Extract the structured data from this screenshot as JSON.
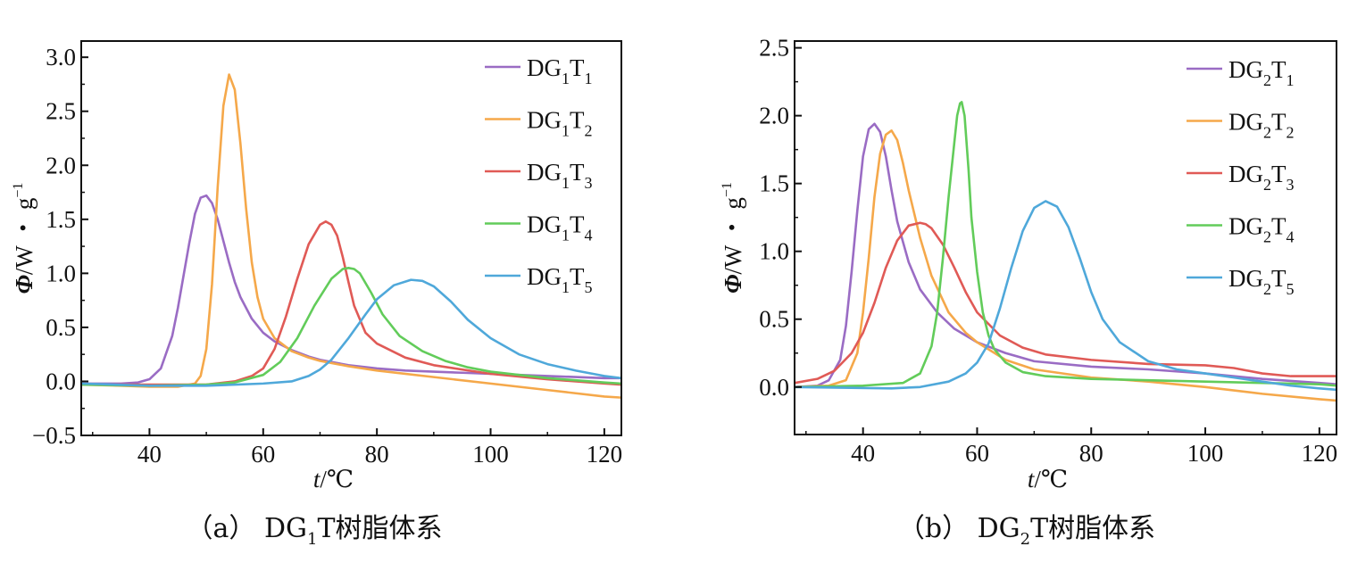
{
  "chart_data": [
    {
      "type": "line",
      "caption": "(a)  DG1T树脂体系",
      "caption_parts": {
        "prefix": "（a）",
        "name": "DG",
        "sub": "1",
        "suffix": "T树脂体系"
      },
      "xlabel": "t/℃",
      "ylabel": "Φ/W・g−1",
      "xlim": [
        28,
        123
      ],
      "ylim": [
        -0.5,
        3.15
      ],
      "xticks": [
        40,
        60,
        80,
        100,
        120
      ],
      "xtick_labels": [
        "40",
        "60",
        "80",
        "100",
        "120"
      ],
      "yticks": [
        -0.5,
        0.0,
        0.5,
        1.0,
        1.5,
        2.0,
        2.5,
        3.0
      ],
      "ytick_labels": [
        "−0.5",
        "0.0",
        "0.5",
        "1.0",
        "1.5",
        "2.0",
        "2.5",
        "3.0"
      ],
      "legend_position": "top-right",
      "grid": false,
      "series": [
        {
          "name": "DG1T1",
          "label_base": "DG",
          "sub1": "1",
          "mid": "T",
          "sub2": "1",
          "color": "#9a6cc4",
          "x": [
            28,
            32,
            35,
            38,
            40,
            42,
            44,
            45,
            46,
            47,
            48,
            49,
            50,
            51,
            52,
            53,
            54,
            55,
            56,
            58,
            60,
            62,
            65,
            68,
            70,
            75,
            80,
            85,
            90,
            95,
            100,
            110,
            120,
            123
          ],
          "y": [
            -0.02,
            -0.02,
            -0.02,
            -0.01,
            0.02,
            0.12,
            0.42,
            0.68,
            0.98,
            1.28,
            1.55,
            1.7,
            1.72,
            1.65,
            1.5,
            1.3,
            1.1,
            0.92,
            0.78,
            0.58,
            0.45,
            0.37,
            0.29,
            0.23,
            0.2,
            0.15,
            0.12,
            0.1,
            0.09,
            0.08,
            0.07,
            0.05,
            0.03,
            0.03
          ]
        },
        {
          "name": "DG1T2",
          "label_base": "DG",
          "sub1": "1",
          "mid": "T",
          "sub2": "2",
          "color": "#f5a84a",
          "x": [
            28,
            35,
            40,
            45,
            48,
            49,
            50,
            51,
            52,
            53,
            54,
            55,
            56,
            57,
            58,
            59,
            60,
            62,
            65,
            68,
            70,
            75,
            80,
            90,
            100,
            110,
            120,
            123
          ],
          "y": [
            -0.03,
            -0.04,
            -0.05,
            -0.05,
            -0.02,
            0.05,
            0.3,
            0.9,
            1.8,
            2.55,
            2.84,
            2.7,
            2.2,
            1.6,
            1.1,
            0.78,
            0.58,
            0.4,
            0.28,
            0.22,
            0.19,
            0.14,
            0.1,
            0.04,
            -0.02,
            -0.08,
            -0.14,
            -0.15
          ]
        },
        {
          "name": "DG1T3",
          "label_base": "DG",
          "sub1": "1",
          "mid": "T",
          "sub2": "3",
          "color": "#e05a56",
          "x": [
            28,
            40,
            50,
            55,
            58,
            60,
            62,
            64,
            66,
            68,
            70,
            71,
            72,
            73,
            74,
            75,
            76,
            78,
            80,
            85,
            90,
            100,
            110,
            120,
            123
          ],
          "y": [
            -0.03,
            -0.03,
            -0.03,
            0.0,
            0.05,
            0.12,
            0.3,
            0.6,
            0.95,
            1.27,
            1.45,
            1.48,
            1.45,
            1.35,
            1.15,
            0.92,
            0.7,
            0.45,
            0.35,
            0.22,
            0.15,
            0.07,
            0.02,
            -0.02,
            -0.03
          ]
        },
        {
          "name": "DG1T4",
          "label_base": "DG",
          "sub1": "1",
          "mid": "T",
          "sub2": "4",
          "color": "#62cc5a",
          "x": [
            28,
            40,
            50,
            55,
            60,
            63,
            66,
            69,
            72,
            74,
            75,
            76,
            77,
            79,
            81,
            84,
            88,
            92,
            96,
            100,
            110,
            120,
            123
          ],
          "y": [
            -0.03,
            -0.04,
            -0.03,
            -0.01,
            0.06,
            0.18,
            0.4,
            0.7,
            0.95,
            1.04,
            1.05,
            1.04,
            1.0,
            0.82,
            0.62,
            0.42,
            0.28,
            0.19,
            0.13,
            0.09,
            0.03,
            -0.01,
            -0.02
          ]
        },
        {
          "name": "DG1T5",
          "label_base": "DG",
          "sub1": "1",
          "mid": "T",
          "sub2": "5",
          "color": "#4fa8da",
          "x": [
            28,
            40,
            50,
            60,
            65,
            68,
            70,
            72,
            75,
            78,
            80,
            83,
            86,
            88,
            90,
            93,
            96,
            100,
            105,
            110,
            115,
            120,
            123
          ],
          "y": [
            -0.02,
            -0.04,
            -0.04,
            -0.02,
            0.0,
            0.05,
            0.11,
            0.2,
            0.4,
            0.62,
            0.76,
            0.89,
            0.94,
            0.93,
            0.88,
            0.74,
            0.57,
            0.4,
            0.25,
            0.16,
            0.1,
            0.05,
            0.03
          ]
        }
      ]
    },
    {
      "type": "line",
      "caption": "(b)  DG2T树脂体系",
      "caption_parts": {
        "prefix": "（b）",
        "name": "DG",
        "sub": "2",
        "suffix": "T树脂体系"
      },
      "xlabel": "t/℃",
      "ylabel": "Φ/W・g−1",
      "xlim": [
        28,
        123
      ],
      "ylim": [
        -0.35,
        2.55
      ],
      "xticks": [
        40,
        60,
        80,
        100,
        120
      ],
      "xtick_labels": [
        "40",
        "60",
        "80",
        "100",
        "120"
      ],
      "yticks": [
        0.0,
        0.5,
        1.0,
        1.5,
        2.0,
        2.5
      ],
      "ytick_labels": [
        "0.0",
        "0.5",
        "1.0",
        "1.5",
        "2.0",
        "2.5"
      ],
      "legend_position": "top-right",
      "grid": false,
      "series": [
        {
          "name": "DG2T1",
          "label_base": "DG",
          "sub1": "2",
          "mid": "T",
          "sub2": "1",
          "color": "#9a6cc4",
          "x": [
            28,
            32,
            34,
            36,
            37,
            38,
            39,
            40,
            41,
            42,
            43,
            44,
            45,
            46,
            48,
            50,
            53,
            56,
            60,
            65,
            70,
            80,
            90,
            100,
            110,
            120,
            123
          ],
          "y": [
            0.0,
            0.01,
            0.05,
            0.2,
            0.45,
            0.85,
            1.3,
            1.7,
            1.9,
            1.94,
            1.88,
            1.7,
            1.45,
            1.22,
            0.92,
            0.72,
            0.55,
            0.43,
            0.33,
            0.25,
            0.19,
            0.15,
            0.13,
            0.1,
            0.06,
            0.03,
            0.02
          ]
        },
        {
          "name": "DG2T2",
          "label_base": "DG",
          "sub1": "2",
          "mid": "T",
          "sub2": "2",
          "color": "#f5a84a",
          "x": [
            28,
            34,
            37,
            39,
            40,
            41,
            42,
            43,
            44,
            45,
            46,
            47,
            48,
            50,
            52,
            55,
            58,
            60,
            65,
            70,
            80,
            90,
            100,
            110,
            120,
            123
          ],
          "y": [
            0.0,
            0.01,
            0.05,
            0.25,
            0.55,
            0.95,
            1.4,
            1.72,
            1.86,
            1.89,
            1.82,
            1.65,
            1.45,
            1.1,
            0.82,
            0.55,
            0.4,
            0.33,
            0.2,
            0.13,
            0.07,
            0.04,
            0.0,
            -0.05,
            -0.09,
            -0.1
          ]
        },
        {
          "name": "DG2T3",
          "label_base": "DG",
          "sub1": "2",
          "mid": "T",
          "sub2": "3",
          "color": "#e05a56",
          "x": [
            28,
            32,
            35,
            38,
            40,
            42,
            44,
            46,
            48,
            50,
            51,
            52,
            54,
            56,
            58,
            60,
            64,
            68,
            72,
            80,
            90,
            100,
            105,
            110,
            115,
            120,
            123
          ],
          "y": [
            0.03,
            0.06,
            0.12,
            0.25,
            0.4,
            0.62,
            0.88,
            1.08,
            1.19,
            1.21,
            1.2,
            1.17,
            1.05,
            0.88,
            0.7,
            0.55,
            0.38,
            0.29,
            0.24,
            0.2,
            0.17,
            0.16,
            0.14,
            0.1,
            0.08,
            0.08,
            0.08
          ]
        },
        {
          "name": "DG2T4",
          "label_base": "DG",
          "sub1": "2",
          "mid": "T",
          "sub2": "4",
          "color": "#62cc5a",
          "x": [
            28,
            40,
            47,
            50,
            52,
            53,
            54,
            55,
            56,
            56.5,
            57,
            57.3,
            57.8,
            58.5,
            59,
            60,
            61,
            62,
            63,
            65,
            68,
            72,
            80,
            90,
            100,
            110,
            120,
            123
          ],
          "y": [
            0.0,
            0.01,
            0.03,
            0.1,
            0.3,
            0.55,
            0.95,
            1.4,
            1.8,
            2.0,
            2.09,
            2.1,
            2.0,
            1.6,
            1.25,
            0.85,
            0.55,
            0.38,
            0.28,
            0.18,
            0.11,
            0.08,
            0.06,
            0.05,
            0.04,
            0.03,
            0.02,
            0.01
          ]
        },
        {
          "name": "DG2T5",
          "label_base": "DG",
          "sub1": "2",
          "mid": "T",
          "sub2": "5",
          "color": "#4fa8da",
          "x": [
            28,
            45,
            50,
            55,
            58,
            60,
            62,
            64,
            66,
            68,
            70,
            72,
            74,
            76,
            78,
            80,
            82,
            85,
            90,
            95,
            100,
            105,
            110,
            115,
            120,
            123
          ],
          "y": [
            0.0,
            -0.01,
            0.0,
            0.04,
            0.1,
            0.18,
            0.32,
            0.58,
            0.88,
            1.15,
            1.32,
            1.37,
            1.33,
            1.18,
            0.95,
            0.7,
            0.5,
            0.33,
            0.19,
            0.13,
            0.1,
            0.07,
            0.04,
            0.01,
            -0.01,
            -0.02
          ]
        }
      ]
    }
  ]
}
